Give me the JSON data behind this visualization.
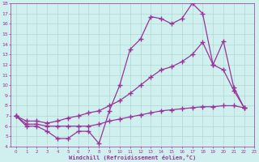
{
  "xlabel": "Windchill (Refroidissement éolien,°C)",
  "background_color": "#cff0ee",
  "grid_color": "#b0d8d0",
  "line_color": "#993399",
  "xlim": [
    -0.5,
    23.0
  ],
  "ylim": [
    4,
    18
  ],
  "xticks": [
    0,
    1,
    2,
    3,
    4,
    5,
    6,
    7,
    8,
    9,
    10,
    11,
    12,
    13,
    14,
    15,
    16,
    17,
    18,
    19,
    20,
    21,
    22,
    23
  ],
  "yticks": [
    4,
    5,
    6,
    7,
    8,
    9,
    10,
    11,
    12,
    13,
    14,
    15,
    16,
    17,
    18
  ],
  "series": [
    [
      7.0,
      6.0,
      6.0,
      5.5,
      4.8,
      4.8,
      5.5,
      5.5,
      4.3,
      7.5,
      10.0,
      13.5,
      14.5,
      16.7,
      16.5,
      16.0,
      16.5,
      18.0,
      17.0,
      12.0,
      14.3,
      9.8,
      7.8
    ],
    [
      7.0,
      6.5,
      6.5,
      6.3,
      6.5,
      6.8,
      7.0,
      7.3,
      7.5,
      8.0,
      8.5,
      9.2,
      10.0,
      10.8,
      11.5,
      11.8,
      12.3,
      13.0,
      14.2,
      12.0,
      11.5,
      9.5,
      7.8
    ],
    [
      7.0,
      6.2,
      6.2,
      6.0,
      6.0,
      6.0,
      6.0,
      6.0,
      6.2,
      6.5,
      6.7,
      6.9,
      7.1,
      7.3,
      7.5,
      7.6,
      7.7,
      7.8,
      7.9,
      7.9,
      8.0,
      8.0,
      7.8
    ]
  ]
}
